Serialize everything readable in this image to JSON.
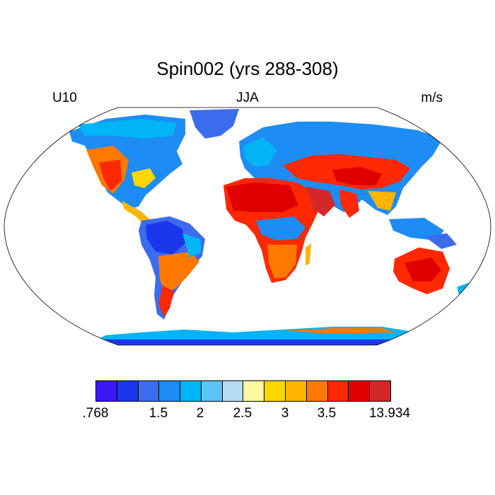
{
  "title": "Spin002 (yrs 288-308)",
  "left_label": "U10",
  "center_label": "JJA",
  "right_label": "m/s",
  "map": {
    "projection": "Robinson",
    "variable": "10-m wind speed (U10)",
    "season": "JJA"
  },
  "colorbar": {
    "colors": [
      "#3c16f5",
      "#1a37ec",
      "#3c6cee",
      "#1e8cf5",
      "#00b4f5",
      "#5ac4f5",
      "#b4def5",
      "#fff8a0",
      "#ffd700",
      "#ffb400",
      "#ff7800",
      "#ff2800",
      "#e10000",
      "#d22828"
    ],
    "labels": [
      ".768",
      "1.5",
      "2",
      "2.5",
      "3",
      "3.5",
      "13.934"
    ]
  }
}
